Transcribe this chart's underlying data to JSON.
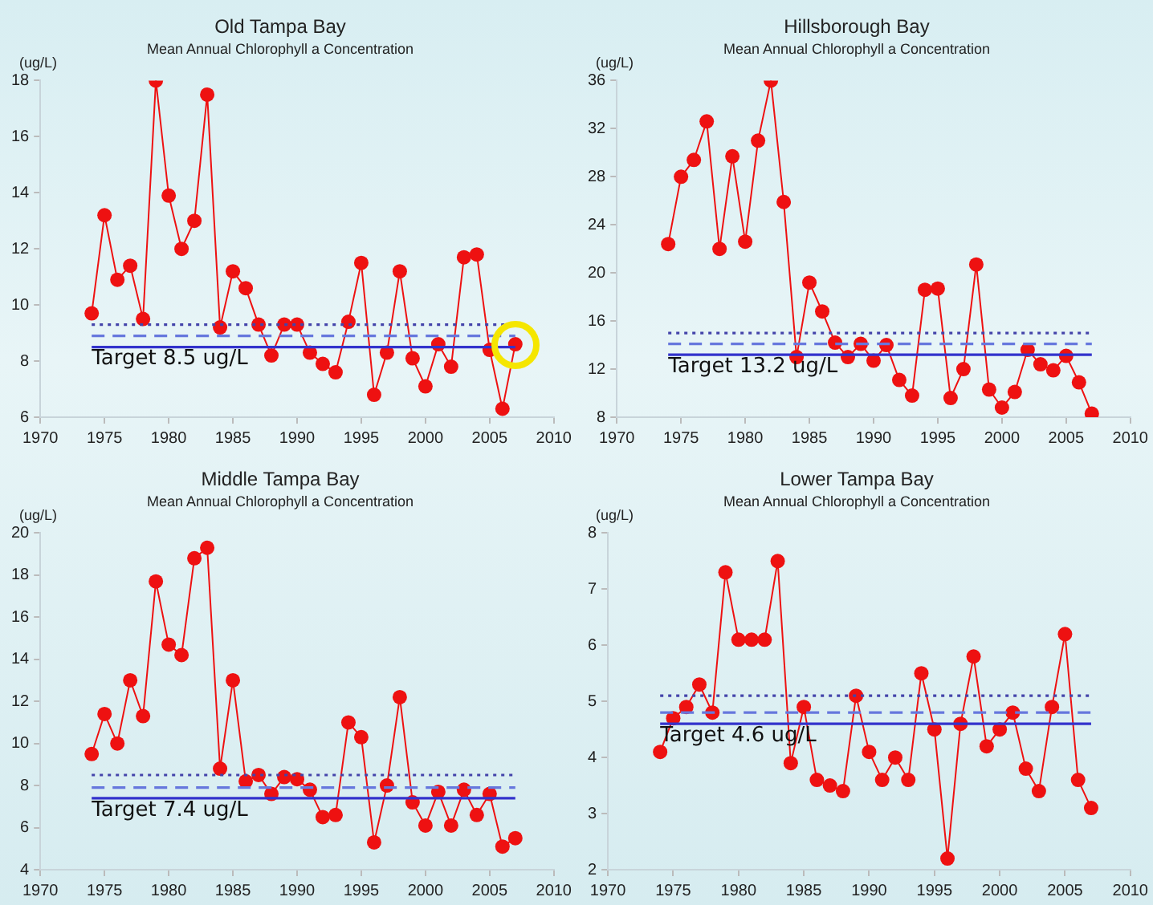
{
  "chart_data": [
    {
      "type": "line",
      "title": "Old Tampa Bay",
      "subtitle": "Mean Annual Chlorophyll a Concentration",
      "ylabel": "(ug/L)",
      "x": [
        1974,
        1975,
        1976,
        1977,
        1978,
        1979,
        1980,
        1981,
        1982,
        1983,
        1984,
        1985,
        1986,
        1987,
        1988,
        1989,
        1990,
        1991,
        1992,
        1993,
        1994,
        1995,
        1996,
        1997,
        1998,
        1999,
        2000,
        2001,
        2002,
        2003,
        2004,
        2005,
        2006,
        2007
      ],
      "series": [
        {
          "color": "#ee1111",
          "values": [
            9.7,
            13.2,
            10.9,
            11.4,
            9.5,
            18.0,
            13.9,
            12.0,
            13.0,
            17.5,
            9.2,
            11.2,
            10.6,
            9.3,
            8.2,
            9.3,
            9.3,
            8.3,
            7.9,
            7.6,
            9.4,
            11.5,
            6.8,
            8.3,
            11.2,
            8.1,
            7.1,
            8.6,
            7.8,
            11.7,
            11.8,
            8.4,
            6.3,
            8.6
          ]
        }
      ],
      "xlim": [
        1970,
        2010
      ],
      "xticks": [
        1970,
        1975,
        1980,
        1985,
        1990,
        1995,
        2000,
        2005,
        2010
      ],
      "ylim": [
        6,
        18
      ],
      "yticks": [
        6,
        8,
        10,
        12,
        14,
        16,
        18
      ],
      "ref_lines": [
        {
          "axis": "y",
          "value": 8.5,
          "label": "Target 8.5 ug/L",
          "color": "#3333cc",
          "line_style": "solid"
        },
        {
          "axis": "y",
          "value": 8.9,
          "color": "#6677dd",
          "line_style": "dashed"
        },
        {
          "axis": "y",
          "value": 9.3,
          "color": "#4444aa",
          "line_style": "dotted"
        }
      ],
      "grid": false,
      "legend": false,
      "marker": "circle",
      "line_style": "solid"
    },
    {
      "type": "line",
      "title": "Hillsborough Bay",
      "subtitle": "Mean Annual Chlorophyll a Concentration",
      "ylabel": "(ug/L)",
      "x": [
        1974,
        1975,
        1976,
        1977,
        1978,
        1979,
        1980,
        1981,
        1982,
        1983,
        1984,
        1985,
        1986,
        1987,
        1988,
        1989,
        1990,
        1991,
        1992,
        1993,
        1994,
        1995,
        1996,
        1997,
        1998,
        1999,
        2000,
        2001,
        2002,
        2003,
        2004,
        2005,
        2006,
        2007
      ],
      "series": [
        {
          "color": "#ee1111",
          "values": [
            22.4,
            28.0,
            29.4,
            32.6,
            22.0,
            29.7,
            22.6,
            31.0,
            36.0,
            25.9,
            13.0,
            19.2,
            16.8,
            14.2,
            13.0,
            14.1,
            12.7,
            14.0,
            11.1,
            9.8,
            18.6,
            18.7,
            9.6,
            12.0,
            20.7,
            10.3,
            8.8,
            10.1,
            13.6,
            12.4,
            11.9,
            13.1,
            10.9,
            8.3
          ]
        }
      ],
      "xlim": [
        1970,
        2010
      ],
      "xticks": [
        1970,
        1975,
        1980,
        1985,
        1990,
        1995,
        2000,
        2005,
        2010
      ],
      "ylim": [
        8,
        36
      ],
      "yticks": [
        8,
        12,
        16,
        20,
        24,
        28,
        32,
        36
      ],
      "ref_lines": [
        {
          "axis": "y",
          "value": 13.2,
          "label": "Target 13.2 ug/L",
          "color": "#3333cc",
          "line_style": "solid"
        },
        {
          "axis": "y",
          "value": 14.1,
          "color": "#6677dd",
          "line_style": "dashed"
        },
        {
          "axis": "y",
          "value": 15.0,
          "color": "#4444aa",
          "line_style": "dotted"
        }
      ],
      "grid": false,
      "legend": false,
      "marker": "circle",
      "line_style": "solid"
    },
    {
      "type": "line",
      "title": "Middle Tampa Bay",
      "subtitle": "Mean Annual Chlorophyll a Concentration",
      "ylabel": "(ug/L)",
      "x": [
        1974,
        1975,
        1976,
        1977,
        1978,
        1979,
        1980,
        1981,
        1982,
        1983,
        1984,
        1985,
        1986,
        1987,
        1988,
        1989,
        1990,
        1991,
        1992,
        1993,
        1994,
        1995,
        1996,
        1997,
        1998,
        1999,
        2000,
        2001,
        2002,
        2003,
        2004,
        2005,
        2006,
        2007
      ],
      "series": [
        {
          "color": "#ee1111",
          "values": [
            9.5,
            11.4,
            10.0,
            13.0,
            11.3,
            17.7,
            14.7,
            14.2,
            18.8,
            19.3,
            8.8,
            13.0,
            8.2,
            8.5,
            7.6,
            8.4,
            8.3,
            7.8,
            6.5,
            6.6,
            11.0,
            10.3,
            5.3,
            8.0,
            12.2,
            7.2,
            6.1,
            7.7,
            6.1,
            7.8,
            6.6,
            7.6,
            5.1,
            5.5
          ]
        }
      ],
      "xlim": [
        1970,
        2010
      ],
      "xticks": [
        1970,
        1975,
        1980,
        1985,
        1990,
        1995,
        2000,
        2005,
        2010
      ],
      "ylim": [
        4,
        20
      ],
      "yticks": [
        4,
        6,
        8,
        10,
        12,
        14,
        16,
        18,
        20
      ],
      "ref_lines": [
        {
          "axis": "y",
          "value": 7.4,
          "label": "Target 7.4 ug/L",
          "color": "#3333cc",
          "line_style": "solid"
        },
        {
          "axis": "y",
          "value": 7.9,
          "color": "#6677dd",
          "line_style": "dashed"
        },
        {
          "axis": "y",
          "value": 8.5,
          "color": "#4444aa",
          "line_style": "dotted"
        }
      ],
      "grid": false,
      "legend": false,
      "marker": "circle",
      "line_style": "solid"
    },
    {
      "type": "line",
      "title": "Lower Tampa Bay",
      "subtitle": "Mean Annual Chlorophyll a Concentration",
      "ylabel": "(ug/L)",
      "x": [
        1974,
        1975,
        1976,
        1977,
        1978,
        1979,
        1980,
        1981,
        1982,
        1983,
        1984,
        1985,
        1986,
        1987,
        1988,
        1989,
        1990,
        1991,
        1992,
        1993,
        1994,
        1995,
        1996,
        1997,
        1998,
        1999,
        2000,
        2001,
        2002,
        2003,
        2004,
        2005,
        2006,
        2007
      ],
      "series": [
        {
          "color": "#ee1111",
          "values": [
            4.1,
            4.7,
            4.9,
            5.3,
            4.8,
            7.3,
            6.1,
            6.1,
            6.1,
            7.5,
            3.9,
            4.9,
            3.6,
            3.5,
            3.4,
            5.1,
            4.1,
            3.6,
            4.0,
            3.6,
            5.5,
            4.5,
            2.2,
            4.6,
            5.8,
            4.2,
            4.5,
            4.8,
            3.8,
            3.4,
            4.9,
            6.2,
            3.6,
            3.1
          ]
        }
      ],
      "xlim": [
        1970,
        2010
      ],
      "xticks": [
        1970,
        1975,
        1980,
        1985,
        1990,
        1995,
        2000,
        2005,
        2010
      ],
      "ylim": [
        2,
        8
      ],
      "yticks": [
        2,
        3,
        4,
        5,
        6,
        7,
        8
      ],
      "ref_lines": [
        {
          "axis": "y",
          "value": 4.6,
          "label": "Target 4.6 ug/L",
          "color": "#3333cc",
          "line_style": "solid"
        },
        {
          "axis": "y",
          "value": 4.8,
          "color": "#6677dd",
          "line_style": "dashed"
        },
        {
          "axis": "y",
          "value": 5.1,
          "color": "#4444aa",
          "line_style": "dotted"
        }
      ],
      "grid": false,
      "legend": false,
      "marker": "circle",
      "line_style": "solid"
    }
  ]
}
